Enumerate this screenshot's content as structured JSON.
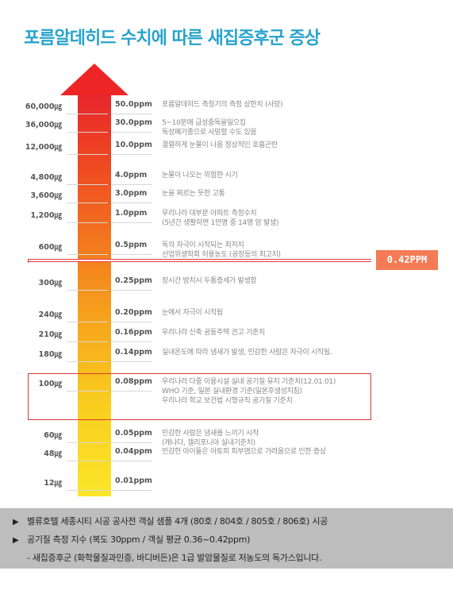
{
  "title": "포름알데히드 수치에 따른 새집증후군 증상",
  "marker": "0.42PPM",
  "rows": [
    {
      "conc": "60,000㎍",
      "ppm": "50.0ppm",
      "desc": [
        "포름알데히드 측정기의 측정 상한치 (사망)"
      ]
    },
    {
      "conc": "36,000㎍",
      "ppm": "30.0ppm",
      "desc": [
        "5~10분에 급성중독을일으킴",
        "독성폐기종으로 사망할 수도 있음"
      ]
    },
    {
      "conc": "12,000㎍",
      "ppm": "10.0ppm",
      "desc": [
        "결렬하게 눈물이 나옴 정상적인 호흡곤란"
      ]
    },
    {
      "conc": "4,800㎍",
      "ppm": "4.0ppm",
      "desc": [
        "눈물이 나오는 위험한 시기"
      ]
    },
    {
      "conc": "3,600㎍",
      "ppm": "3.0ppm",
      "desc": [
        "눈을 찌르는 듯한 고통"
      ]
    },
    {
      "conc": "1,200㎍",
      "ppm": "1.0ppm",
      "desc": [
        "우리나라 대부분 아파트 측정수치",
        "(5년간 생활하면 1만명 중 14명 암 발생)"
      ]
    },
    {
      "conc": "600㎍",
      "ppm": "0.5ppm",
      "desc": [
        "독의 자극이 시작되는 최저치",
        "산업위생학회 허용농도 (공장등의 최고치)"
      ]
    },
    {
      "conc": "300㎍",
      "ppm": "0.25ppm",
      "desc": [
        "장시간 방치시 두통증세가 발생함"
      ]
    },
    {
      "conc": "240㎍",
      "ppm": "0.20ppm",
      "desc": [
        "눈에서 자극이 시작됨"
      ]
    },
    {
      "conc": "210㎍",
      "ppm": "0.16ppm",
      "desc": [
        "우리나라 신축 공동주택 권고 기준치"
      ]
    },
    {
      "conc": "180㎍",
      "ppm": "0.14ppm",
      "desc": [
        "실내온도에 따라 냄새가 발생, 민감한 사람은 자극이 시작됨."
      ]
    },
    {
      "conc": "100㎍",
      "ppm": "0.08ppm",
      "desc": [
        "우리나라 다중 이용시설 실내 공기질 유지 기준치(12.01.01)",
        "WHO 기준, 일본 실내환경 기준(일본후생성지침)",
        "우리나라 학교 보건법 시행규칙 공기질 기준치"
      ]
    },
    {
      "conc": "60㎍",
      "ppm": "0.05ppm",
      "desc": [
        "민감한 사람은 냄새를 느끼기 시작",
        "(캐나다, 캘리포니아 실내기준치)"
      ]
    },
    {
      "conc": "48㎍",
      "ppm": "0.04ppm",
      "desc": [
        "민감한 아이들은 아토피 피부염으로 가려움으로 인한 증상"
      ]
    },
    {
      "conc": "12㎍",
      "ppm": "0.01ppm",
      "desc": []
    }
  ],
  "bottom": {
    "line1": "벨류호텔 세종시티 시공 공사전 객실 샘플 4개 (80호 / 804호 / 805호 / 806호) 시공",
    "line2": "공기질 측정 지수 (복도 30ppm / 객실 평균 0.36~0.42ppm)",
    "line3": "-  새집증후군 (화학물질과민증, 바디버든)은 1급 발암물질로 저농도의 독가스입니다.",
    "bullet": "▶"
  }
}
